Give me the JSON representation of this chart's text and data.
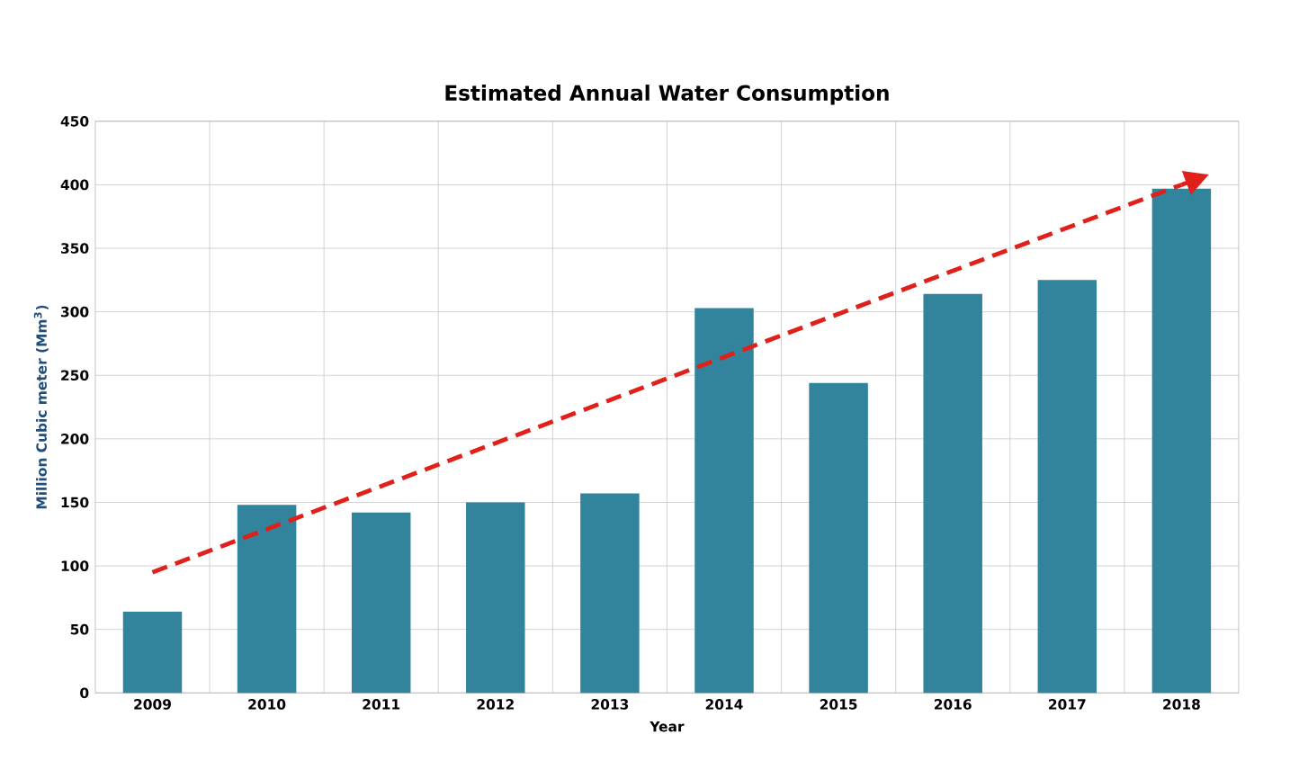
{
  "chart_data": {
    "type": "bar",
    "title": "Estimated  Annual Water Consumption",
    "xlabel": "Year",
    "ylabel": "Million Cubic meter (Mm$^{3}$)",
    "x": [
      2009,
      2010,
      2011,
      2012,
      2013,
      2014,
      2015,
      2016,
      2017,
      2018
    ],
    "xlim": [
      2008.5,
      2018.5
    ],
    "xticks": [
      2009,
      2010,
      2011,
      2012,
      2013,
      2014,
      2015,
      2016,
      2017,
      2018
    ],
    "ylim": [
      0,
      450
    ],
    "yticks": [
      0,
      50,
      100,
      150,
      200,
      250,
      300,
      350,
      400,
      450
    ],
    "grid": true,
    "series": [
      {
        "color": "#31849b",
        "values": [
          64,
          148,
          142,
          150,
          157,
          303,
          244,
          314,
          325,
          397
        ]
      },
      {
        "type": "line",
        "color": "#e0201b",
        "line_style": "dashed",
        "x": [
          2009,
          2018
        ],
        "values": [
          95,
          400
        ]
      }
    ]
  }
}
